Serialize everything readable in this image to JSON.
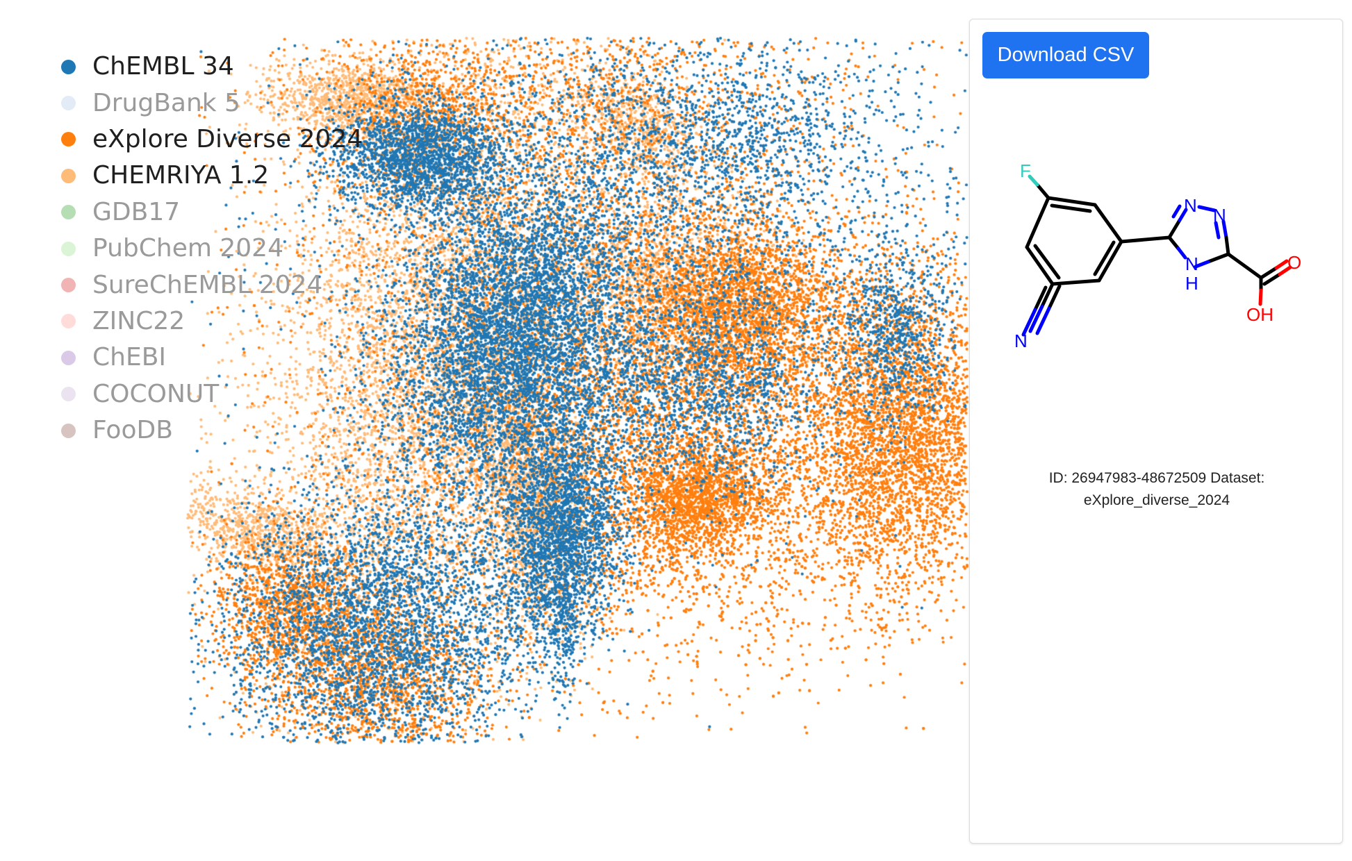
{
  "legend": {
    "items": [
      {
        "label": "ChEMBL 34",
        "color": "#1f77b4",
        "active": true
      },
      {
        "label": "DrugBank 5",
        "color": "#aec7e8",
        "active": false
      },
      {
        "label": "eXplore Diverse 2024",
        "color": "#ff7f0e",
        "active": true
      },
      {
        "label": "CHEMRIYA 1.2",
        "color": "#ffbb78",
        "active": true
      },
      {
        "label": "GDB17",
        "color": "#2ca02c",
        "active": false
      },
      {
        "label": "PubChem 2024",
        "color": "#98df8a",
        "active": false
      },
      {
        "label": "SureChEMBL 2024",
        "color": "#d62728",
        "active": false
      },
      {
        "label": "ZINC22",
        "color": "#ff9896",
        "active": false
      },
      {
        "label": "ChEBI",
        "color": "#9467bd",
        "active": false
      },
      {
        "label": "COCONUT",
        "color": "#c5b0d5",
        "active": false
      },
      {
        "label": "FooDB",
        "color": "#8c564b",
        "active": false
      }
    ]
  },
  "panel": {
    "download_label": "Download CSV",
    "molecule": {
      "atoms": {
        "F": "F",
        "N_nitrile": "N",
        "N1": "N",
        "N2": "N",
        "NH_N": "N",
        "NH_H": "H",
        "O": "O",
        "OH": "OH"
      },
      "colors": {
        "bond": "#000000",
        "fluorine": "#33ccbb",
        "nitrogen": "#0000ff",
        "oxygen": "#ff0000"
      }
    },
    "info_line1": "ID: 26947983-48672509 Dataset:",
    "info_line2": "eXplore_diverse_2024"
  }
}
